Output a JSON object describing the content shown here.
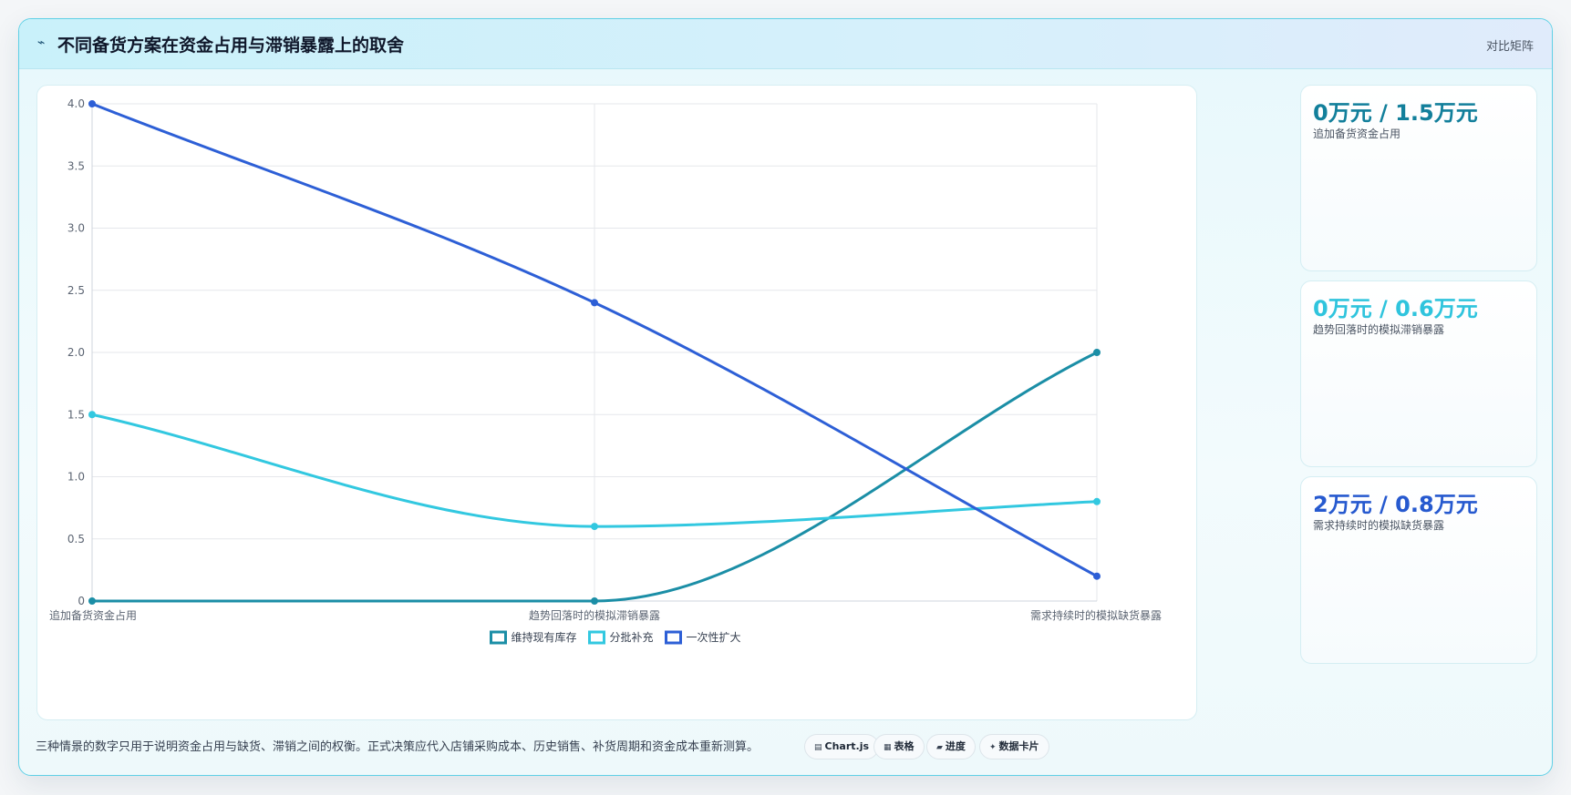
{
  "header": {
    "icon": "lightning-icon",
    "title": "不同备货方案在资金占用与滞销暴露上的取舍",
    "right_label": "对比矩阵"
  },
  "chart_data": {
    "type": "line",
    "title": "",
    "xlabel": "",
    "ylabel": "",
    "categories": [
      "追加备货资金占用",
      "趋势回落时的模拟滞销暴露",
      "需求持续时的模拟缺货暴露"
    ],
    "ylim": [
      0,
      4
    ],
    "yticks": [
      "0",
      "0.5",
      "1.0",
      "1.5",
      "2.0",
      "2.5",
      "3.0",
      "3.5",
      "4.0"
    ],
    "grid": true,
    "legend_position": "bottom",
    "series": [
      {
        "name": "维持现有库存",
        "values": [
          0,
          0,
          2
        ],
        "color": "#1b8ea6"
      },
      {
        "name": "分批补充",
        "values": [
          1.5,
          0.6,
          0.8
        ],
        "color": "#32c8e0"
      },
      {
        "name": "一次性扩大",
        "values": [
          4,
          2.4,
          0.2
        ],
        "color": "#2d5fd6"
      }
    ]
  },
  "stats": [
    {
      "value": "0万元 / 1.5万元",
      "label": "追加备货资金占用",
      "color": "#127f9b"
    },
    {
      "value": "0万元 / 0.6万元",
      "label": "趋势回落时的模拟滞销暴露",
      "color": "#2fc4dd"
    },
    {
      "value": "2万元 / 0.8万元",
      "label": "需求持续时的模拟缺货暴露",
      "color": "#2659cf"
    }
  ],
  "footer": {
    "note": "三种情景的数字只用于说明资金占用与缺货、滞销之间的权衡。正式决策应代入店铺采购成本、历史销售、补货周期和资金成本重新测算。",
    "pills": [
      {
        "icon": "chart-icon",
        "label": "Chart.js"
      },
      {
        "icon": "table-icon",
        "label": "表格"
      },
      {
        "icon": "progress-icon",
        "label": "进度"
      },
      {
        "icon": "sparkle-icon",
        "label": "数据卡片"
      }
    ]
  }
}
